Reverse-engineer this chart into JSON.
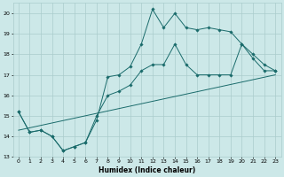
{
  "xlabel": "Humidex (Indice chaleur)",
  "xlim": [
    -0.5,
    23.5
  ],
  "ylim": [
    13,
    20.5
  ],
  "yticks": [
    13,
    14,
    15,
    16,
    17,
    18,
    19,
    20
  ],
  "xticks": [
    0,
    1,
    2,
    3,
    4,
    5,
    6,
    7,
    8,
    9,
    10,
    11,
    12,
    13,
    14,
    15,
    16,
    17,
    18,
    19,
    20,
    21,
    22,
    23
  ],
  "background_color": "#cce8e8",
  "grid_color": "#aacccc",
  "line_color": "#1a6b6b",
  "line1_x": [
    0,
    1,
    2,
    3,
    4,
    5,
    6,
    7,
    8,
    9,
    10,
    11,
    12,
    13,
    14,
    15,
    16,
    17,
    18,
    19,
    20,
    21,
    22,
    23
  ],
  "line1_y": [
    15.2,
    14.2,
    14.3,
    14.0,
    13.3,
    13.5,
    13.7,
    14.8,
    16.9,
    17.0,
    17.4,
    18.5,
    20.2,
    19.3,
    20.0,
    19.3,
    19.2,
    19.3,
    19.2,
    19.1,
    18.5,
    18.0,
    17.5,
    17.2
  ],
  "line2_x": [
    0,
    1,
    2,
    3,
    4,
    5,
    6,
    7,
    8,
    9,
    10,
    11,
    12,
    13,
    14,
    15,
    16,
    17,
    18,
    19,
    20,
    21,
    22,
    23
  ],
  "line2_y": [
    15.2,
    14.2,
    14.3,
    14.0,
    13.3,
    13.5,
    13.7,
    15.0,
    16.0,
    16.2,
    16.5,
    17.2,
    17.5,
    17.5,
    18.5,
    17.5,
    17.0,
    17.0,
    17.0,
    17.0,
    18.5,
    17.8,
    17.2,
    17.2
  ],
  "line3_x": [
    0,
    23
  ],
  "line3_y": [
    14.3,
    17.0
  ]
}
